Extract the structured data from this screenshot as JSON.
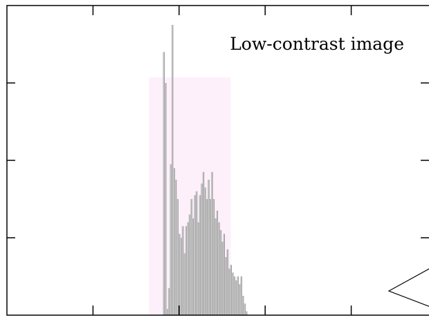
{
  "chart_data": {
    "type": "bar",
    "title": "Low-contrast image",
    "xlabel": "",
    "ylabel": "",
    "xlim": [
      0,
      5
    ],
    "ylim": [
      0,
      4
    ],
    "grid": false,
    "legend": "none",
    "colors": {
      "bar_fill": "#c8c8c8",
      "bar_line": "#8a8a8a",
      "highlight_band": "#fdf0fb",
      "axis": "#000000"
    },
    "highlight_range": [
      1.65,
      2.6
    ],
    "x": [
      1.82,
      1.84,
      1.86,
      1.88,
      1.9,
      1.92,
      1.94,
      1.96,
      1.98,
      2.0,
      2.02,
      2.04,
      2.06,
      2.08,
      2.1,
      2.12,
      2.14,
      2.16,
      2.18,
      2.2,
      2.22,
      2.24,
      2.26,
      2.28,
      2.3,
      2.32,
      2.34,
      2.36,
      2.38,
      2.4,
      2.42,
      2.44,
      2.46,
      2.48,
      2.5,
      2.52,
      2.54,
      2.56,
      2.58,
      2.6,
      2.62,
      2.64,
      2.66,
      2.68,
      2.7,
      2.72,
      2.74,
      2.76,
      2.78
    ],
    "values": [
      3.4,
      3.0,
      0.08,
      0.35,
      1.95,
      3.75,
      1.9,
      1.75,
      1.5,
      1.05,
      1.0,
      1.15,
      0.8,
      1.15,
      1.2,
      1.3,
      1.5,
      1.25,
      1.55,
      1.6,
      1.2,
      1.55,
      1.7,
      1.85,
      1.65,
      1.5,
      1.75,
      1.5,
      1.85,
      1.5,
      1.25,
      1.35,
      1.2,
      1.1,
      0.95,
      1.05,
      0.75,
      0.85,
      0.6,
      0.65,
      0.55,
      0.5,
      0.45,
      0.5,
      0.4,
      0.5,
      0.25,
      0.15,
      0.05
    ]
  }
}
